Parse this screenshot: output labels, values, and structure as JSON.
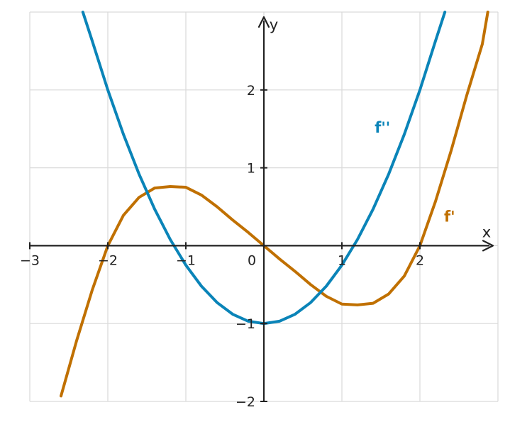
{
  "chart_data": {
    "type": "line",
    "title": "",
    "xlabel": "x",
    "ylabel": "y",
    "xlim": [
      -3,
      3
    ],
    "ylim": [
      -2,
      3
    ],
    "grid": true,
    "x_ticks": [
      {
        "value": -3,
        "label": "−3"
      },
      {
        "value": -2,
        "label": "−2"
      },
      {
        "value": -1,
        "label": "−1"
      },
      {
        "value": 0,
        "label": "0"
      },
      {
        "value": 1,
        "label": "1"
      },
      {
        "value": 2,
        "label": "2"
      }
    ],
    "y_ticks": [
      {
        "value": -2,
        "label": "−2"
      },
      {
        "value": -1,
        "label": "−1"
      },
      {
        "value": 1,
        "label": "1"
      },
      {
        "value": 2,
        "label": "2"
      }
    ],
    "series": [
      {
        "name": "f'",
        "color": "#c07000",
        "x": [
          -2.6,
          -2.4,
          -2.2,
          -2.0,
          -1.8,
          -1.6,
          -1.4,
          -1.2,
          -1.0,
          -0.8,
          -0.6,
          -0.4,
          -0.2,
          0.0,
          0.2,
          0.4,
          0.6,
          0.8,
          1.0,
          1.2,
          1.4,
          1.6,
          1.8,
          2.0,
          2.2,
          2.4,
          2.6,
          2.8,
          2.87
        ],
        "y": [
          -1.93,
          -1.22,
          -0.57,
          0.0,
          0.39,
          0.62,
          0.74,
          0.76,
          0.75,
          0.65,
          0.5,
          0.33,
          0.17,
          0.0,
          -0.17,
          -0.33,
          -0.5,
          -0.65,
          -0.75,
          -0.76,
          -0.74,
          -0.62,
          -0.39,
          0.0,
          0.57,
          1.22,
          1.93,
          2.59,
          3.0
        ]
      },
      {
        "name": "f''",
        "color": "#0a84b8",
        "x": [
          -2.32,
          -2.2,
          -2.0,
          -1.8,
          -1.6,
          -1.4,
          -1.2,
          -1.0,
          -0.8,
          -0.6,
          -0.4,
          -0.2,
          0.0,
          0.2,
          0.4,
          0.6,
          0.8,
          1.0,
          1.2,
          1.4,
          1.6,
          1.8,
          2.0,
          2.2,
          2.32
        ],
        "y": [
          3.0,
          2.63,
          2.0,
          1.43,
          0.92,
          0.47,
          0.08,
          -0.25,
          -0.52,
          -0.73,
          -0.88,
          -0.97,
          -1.0,
          -0.97,
          -0.88,
          -0.73,
          -0.52,
          -0.25,
          0.08,
          0.47,
          0.92,
          1.43,
          2.0,
          2.63,
          3.0
        ]
      }
    ],
    "annotations": [
      {
        "text": "f''",
        "x": 1.52,
        "y": 1.45,
        "color": "#0a84b8"
      },
      {
        "text": "f'",
        "x": 2.38,
        "y": 0.31,
        "color": "#c07000"
      }
    ]
  }
}
